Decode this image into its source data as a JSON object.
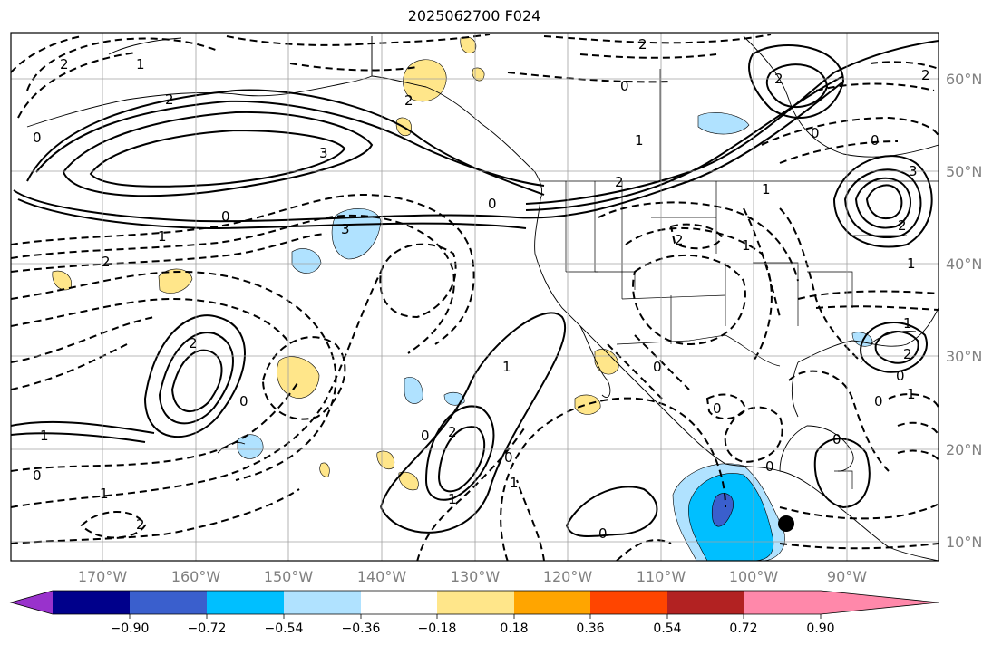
{
  "title": "2025062700 F024",
  "lon_labels": [
    "170°W",
    "160°W",
    "150°W",
    "140°W",
    "130°W",
    "120°W",
    "110°W",
    "100°W",
    "90°W"
  ],
  "lat_labels": [
    "60°N",
    "50°N",
    "40°N",
    "30°N",
    "20°N",
    "10°N"
  ],
  "colorbar": {
    "colors": [
      "#9932cc",
      "#00008b",
      "#3a5fcd",
      "#00bfff",
      "#b0e2ff",
      "#ffffff",
      "#ffe68a",
      "#ffa500",
      "#ff4500",
      "#b22222",
      "#ff88aa"
    ],
    "tick_labels": [
      "−0.90",
      "−0.72",
      "−0.54",
      "−0.36",
      "−0.18",
      "0.18",
      "0.36",
      "0.54",
      "0.72",
      "0.90"
    ]
  },
  "contour_labels": [
    "2",
    "1",
    "0",
    "2",
    "3",
    "0",
    "1",
    "0",
    "2",
    "1",
    "1",
    "3",
    "2",
    "0",
    "0",
    "3",
    "2",
    "0",
    "2",
    "2",
    "1",
    "2",
    "0",
    "1",
    "0",
    "0",
    "1",
    "0",
    "1",
    "2",
    "2",
    "1",
    "0",
    "2",
    "0",
    "1",
    "0",
    "0",
    "0",
    "1",
    "1",
    "2",
    "0",
    "0",
    "2",
    "1",
    "2"
  ],
  "colors": {
    "negative_fill": "#b0e2ff",
    "positive_fill": "#ffe68a",
    "deep_negative": "#00bfff",
    "core_negative": "#3a5fcd"
  }
}
